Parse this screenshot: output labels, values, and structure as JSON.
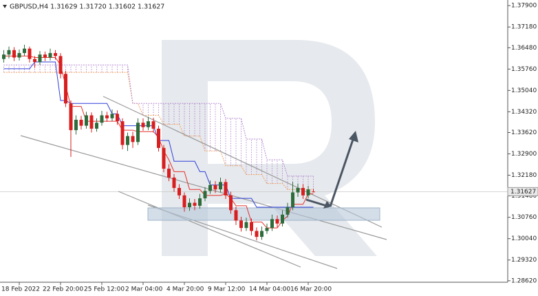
{
  "chart_data": {
    "type": "candlestick",
    "title": "GBPUSD,H4 1.31629 1.31720 1.31602 1.31627",
    "categories": [
      null,
      null,
      null,
      "18 Feb 2022",
      null,
      null,
      null,
      null,
      null,
      null,
      null,
      "22 Feb 20:00",
      null,
      null,
      null,
      null,
      null,
      null,
      null,
      "25 Feb 12:00",
      null,
      null,
      null,
      null,
      null,
      null,
      null,
      "2 Mar 04:00",
      null,
      null,
      null,
      null,
      null,
      null,
      null,
      "4 Mar 20:00",
      null,
      null,
      null,
      null,
      null,
      null,
      null,
      "9 Mar 12:00",
      null,
      null,
      null,
      null,
      null,
      null,
      null,
      "14 Mar 04:00",
      null,
      null,
      null,
      null,
      null,
      null,
      null,
      "16 Mar 20:00",
      null
    ],
    "open": [
      1.361,
      1.3625,
      1.364,
      1.3615,
      1.363,
      1.3645,
      1.361,
      1.36,
      1.3625,
      1.3615,
      1.363,
      1.362,
      1.356,
      1.346,
      1.337,
      1.3405,
      1.3385,
      1.342,
      1.3375,
      1.3395,
      1.342,
      1.341,
      1.3425,
      1.34,
      1.332,
      1.335,
      1.333,
      1.3395,
      1.338,
      1.34,
      1.3375,
      1.331,
      1.324,
      1.321,
      1.3175,
      1.315,
      1.311,
      1.3125,
      1.3115,
      1.314,
      1.3165,
      1.3185,
      1.317,
      1.3195,
      1.315,
      1.31,
      1.3065,
      1.304,
      1.306,
      1.303,
      1.301,
      1.303,
      1.304,
      1.307,
      1.3055,
      1.3085,
      1.311,
      1.316,
      1.3175,
      1.315,
      1.31629
    ],
    "high": [
      1.364,
      1.3652,
      1.365,
      1.3642,
      1.3658,
      1.3652,
      1.362,
      1.3637,
      1.3635,
      1.3645,
      1.364,
      1.363,
      1.357,
      1.347,
      1.342,
      1.3418,
      1.3432,
      1.343,
      1.341,
      1.3435,
      1.3432,
      1.344,
      1.3437,
      1.341,
      1.3362,
      1.3365,
      1.341,
      1.341,
      1.3415,
      1.3412,
      1.3385,
      1.332,
      1.3255,
      1.3222,
      1.3188,
      1.316,
      1.314,
      1.3138,
      1.3155,
      1.3178,
      1.32,
      1.3198,
      1.321,
      1.3205,
      1.3162,
      1.3112,
      1.3078,
      1.3075,
      1.3072,
      1.3042,
      1.3045,
      1.3055,
      1.3085,
      1.3082,
      1.31,
      1.3125,
      1.3195,
      1.319,
      1.3188,
      1.3182,
      1.3172
    ],
    "low": [
      1.3598,
      1.3612,
      1.3603,
      1.3605,
      1.362,
      1.3598,
      1.358,
      1.359,
      1.3603,
      1.3605,
      1.3608,
      1.3545,
      1.3448,
      1.328,
      1.3355,
      1.3372,
      1.3375,
      1.3362,
      1.3365,
      1.3385,
      1.3398,
      1.34,
      1.3388,
      1.3305,
      1.33,
      1.331,
      1.332,
      1.3368,
      1.337,
      1.3362,
      1.3298,
      1.3228,
      1.3198,
      1.3162,
      1.3138,
      1.3095,
      1.3098,
      1.31,
      1.3105,
      1.313,
      1.3155,
      1.3158,
      1.316,
      1.3138,
      1.3088,
      1.305,
      1.3028,
      1.303,
      1.3015,
      1.2998,
      1.3,
      1.302,
      1.303,
      1.3042,
      1.3045,
      1.3075,
      1.31,
      1.3145,
      1.3138,
      1.314,
      1.31602
    ],
    "close": [
      1.3625,
      1.364,
      1.3615,
      1.363,
      1.3645,
      1.361,
      1.36,
      1.3625,
      1.3615,
      1.363,
      1.362,
      1.356,
      1.346,
      1.337,
      1.3405,
      1.3385,
      1.342,
      1.3375,
      1.3395,
      1.342,
      1.341,
      1.3425,
      1.34,
      1.332,
      1.335,
      1.333,
      1.3395,
      1.338,
      1.34,
      1.3375,
      1.331,
      1.324,
      1.321,
      1.3175,
      1.315,
      1.311,
      1.3125,
      1.3115,
      1.314,
      1.3165,
      1.3185,
      1.317,
      1.3195,
      1.315,
      1.31,
      1.3065,
      1.304,
      1.306,
      1.303,
      1.301,
      1.303,
      1.304,
      1.307,
      1.3055,
      1.3085,
      1.311,
      1.316,
      1.3175,
      1.315,
      1.317,
      1.31627
    ],
    "up_color": "#2e6b3a",
    "down_color": "#d81e1e",
    "lines": [
      {
        "color": "#2f3fd8",
        "values": [
          1.3577,
          1.3577,
          1.3577,
          1.3577,
          1.3577,
          1.3577,
          1.36,
          1.36,
          1.36,
          1.36,
          1.36,
          1.347,
          1.347,
          1.346,
          1.346,
          1.346,
          1.346,
          1.346,
          1.346,
          1.346,
          1.346,
          1.3425,
          1.3425,
          1.3385,
          1.3385,
          1.3385,
          1.3385,
          1.3385,
          1.3385,
          1.3385,
          1.3335,
          1.3335,
          1.3335,
          1.3265,
          1.3265,
          1.3265,
          1.3265,
          1.3265,
          1.323,
          1.323,
          1.3185,
          1.3185,
          1.3185,
          1.3185,
          1.314,
          1.314,
          1.314,
          1.314,
          1.314,
          1.311,
          1.311,
          1.311,
          1.311,
          1.311,
          1.311,
          1.311,
          1.311,
          1.311,
          1.311,
          1.311,
          1.311
        ]
      },
      {
        "color": "#e3312b",
        "values": [
          1.362,
          1.362,
          1.362,
          1.362,
          1.362,
          1.362,
          1.3615,
          1.3615,
          1.3615,
          1.3615,
          1.3615,
          1.359,
          1.352,
          1.345,
          1.345,
          1.345,
          1.34,
          1.34,
          1.34,
          1.34,
          1.34,
          1.34,
          1.34,
          1.337,
          1.337,
          1.337,
          1.3365,
          1.3365,
          1.3365,
          1.3365,
          1.3345,
          1.33,
          1.327,
          1.323,
          1.323,
          1.323,
          1.317,
          1.317,
          1.317,
          1.315,
          1.315,
          1.315,
          1.315,
          1.3155,
          1.314,
          1.3115,
          1.3115,
          1.3115,
          1.306,
          1.306,
          1.306,
          1.304,
          1.304,
          1.304,
          1.3065,
          1.308,
          1.312,
          1.312,
          1.312,
          1.3155,
          1.3155
        ]
      }
    ],
    "cloud": {
      "color_a": "#f0a060",
      "color_b": "#b58ad0",
      "span_a": [
        1.3565,
        1.3565,
        1.3565,
        1.3565,
        1.3565,
        1.3565,
        1.3565,
        1.3565,
        1.3565,
        1.3565,
        1.3565,
        1.3565,
        1.3565,
        1.3565,
        1.3565,
        1.3565,
        1.3565,
        1.3565,
        1.3565,
        1.3565,
        1.3565,
        1.3565,
        1.3565,
        1.3565,
        1.3565,
        1.346,
        1.346,
        1.342,
        1.342,
        1.342,
        1.342,
        1.339,
        1.339,
        1.339,
        1.339,
        1.335,
        1.335,
        1.335,
        1.335,
        1.33,
        1.33,
        1.33,
        1.33,
        1.325,
        1.325,
        1.325,
        1.325,
        1.322,
        1.322,
        1.322,
        1.322,
        1.319,
        1.319,
        1.319,
        1.319,
        1.317,
        1.317,
        1.317,
        1.317,
        1.317,
        1.317
      ],
      "span_b": [
        1.359,
        1.359,
        1.359,
        1.359,
        1.359,
        1.359,
        1.359,
        1.359,
        1.359,
        1.359,
        1.359,
        1.359,
        1.359,
        1.359,
        1.359,
        1.359,
        1.359,
        1.359,
        1.359,
        1.359,
        1.359,
        1.359,
        1.359,
        1.359,
        1.359,
        1.346,
        1.346,
        1.346,
        1.346,
        1.346,
        1.346,
        1.346,
        1.346,
        1.346,
        1.346,
        1.346,
        1.346,
        1.346,
        1.346,
        1.346,
        1.346,
        1.346,
        1.346,
        1.341,
        1.341,
        1.341,
        1.341,
        1.334,
        1.334,
        1.334,
        1.334,
        1.327,
        1.327,
        1.327,
        1.327,
        1.3215,
        1.3215,
        1.3215,
        1.3215,
        1.3215,
        1.3215
      ]
    },
    "ylim": [
      1.2857,
      1.3809
    ],
    "yticks": [
      {
        "value": 1.379,
        "label": "1.37900"
      },
      {
        "value": 1.3718,
        "label": "1.37180"
      },
      {
        "value": 1.3648,
        "label": "1.36480"
      },
      {
        "value": 1.3576,
        "label": "1.35760"
      },
      {
        "value": 1.3504,
        "label": "1.35040"
      },
      {
        "value": 1.3432,
        "label": "1.34320"
      },
      {
        "value": 1.3362,
        "label": "1.33620"
      },
      {
        "value": 1.329,
        "label": "1.32900"
      },
      {
        "value": 1.3218,
        "label": "1.32180"
      },
      {
        "value": 1.3148,
        "label": "1.31480"
      },
      {
        "value": 1.3076,
        "label": "1.30760"
      },
      {
        "value": 1.3004,
        "label": "1.30040"
      },
      {
        "value": 1.2932,
        "label": "1.29320"
      },
      {
        "value": 1.2862,
        "label": "1.28620"
      }
    ],
    "grid": false
  }
}
